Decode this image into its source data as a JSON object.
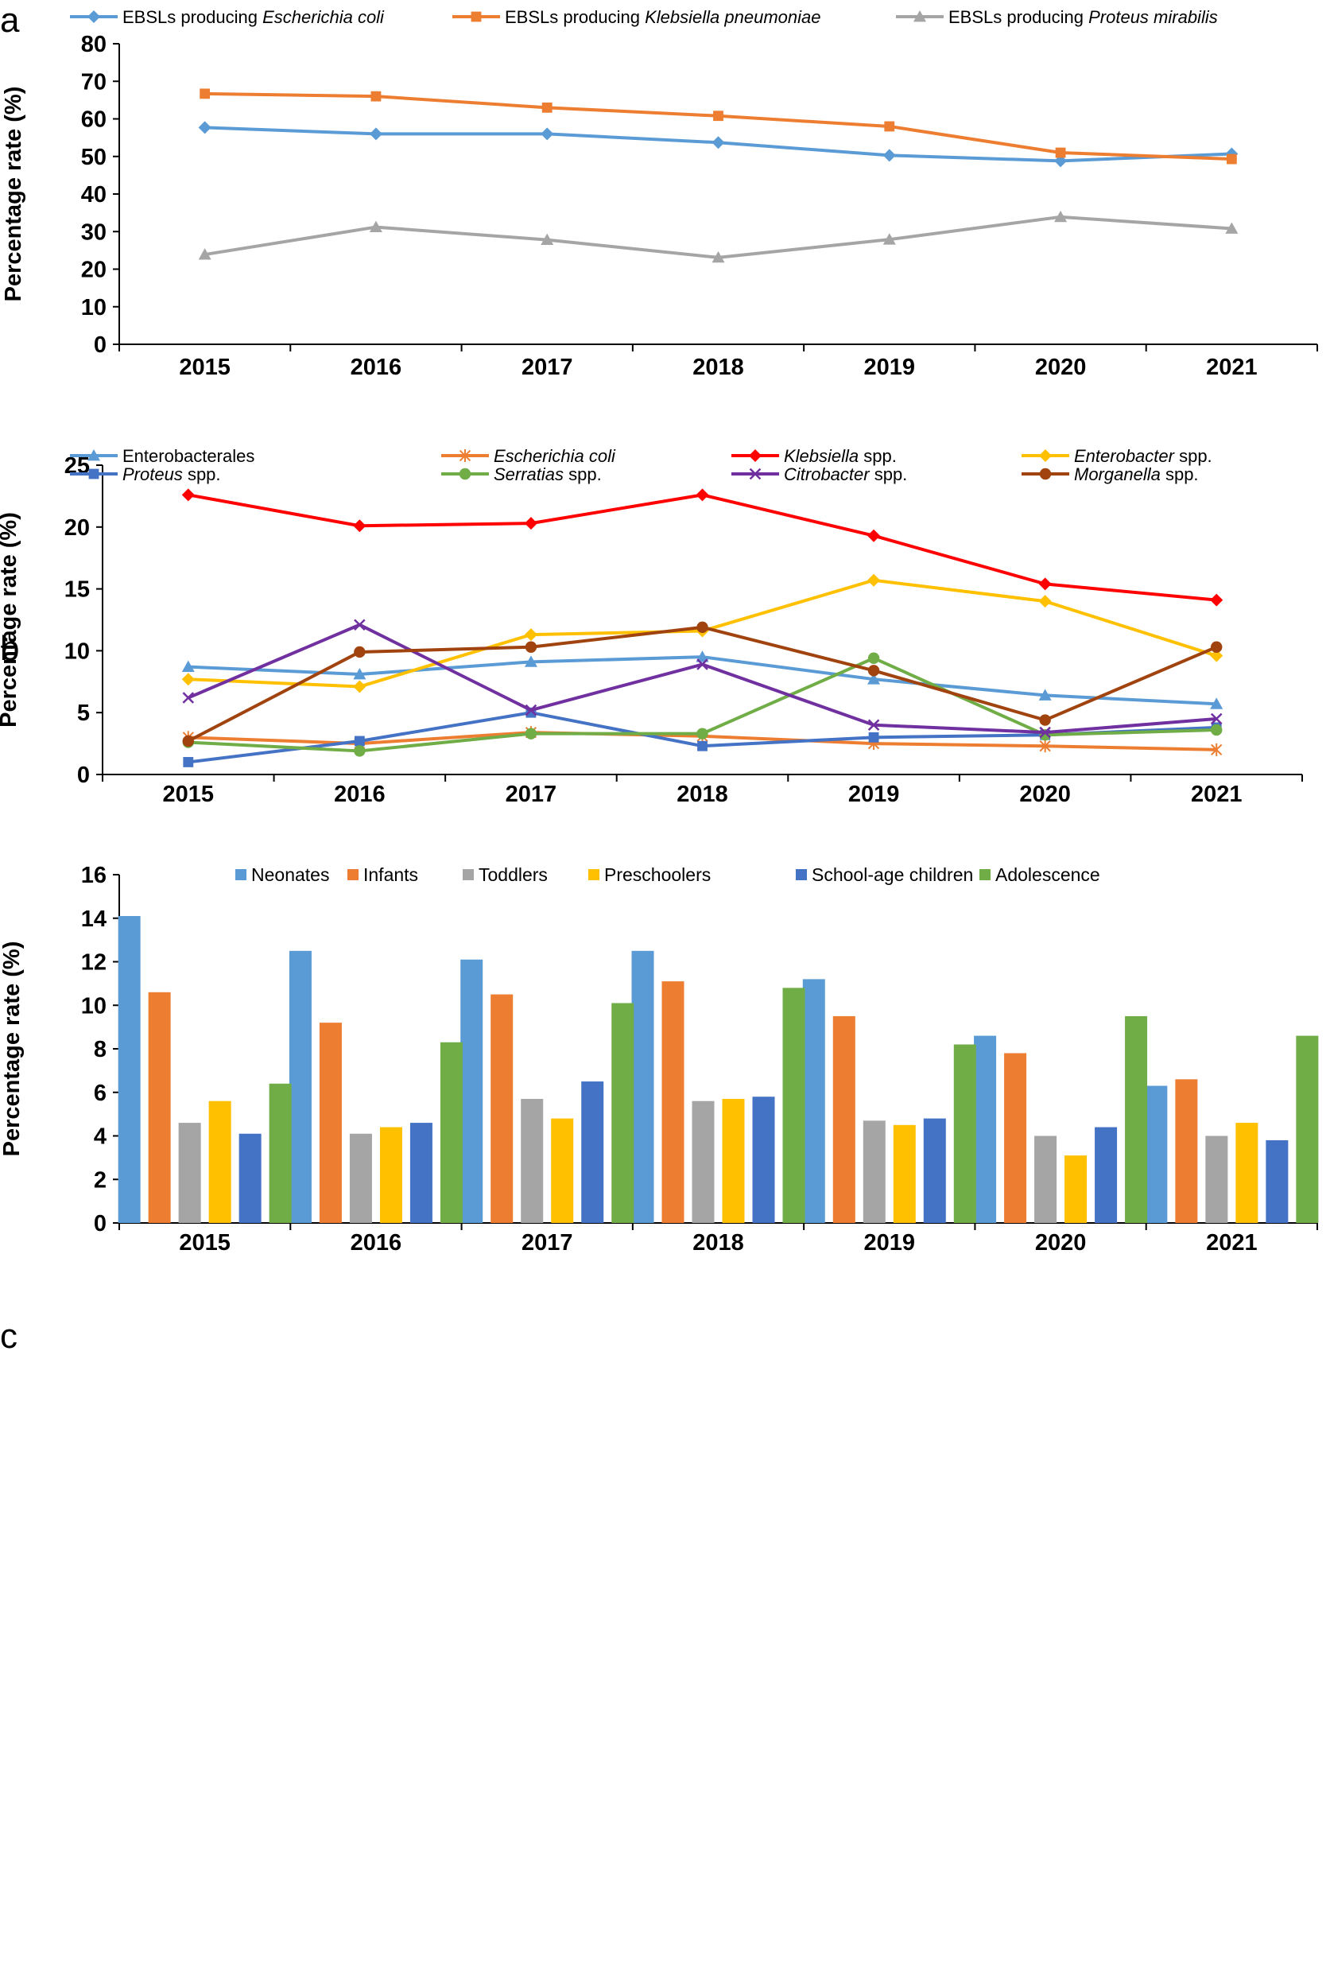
{
  "chart_data": [
    {
      "panel": "a",
      "type": "line",
      "x": [
        "2015",
        "2016",
        "2017",
        "2018",
        "2019",
        "2020",
        "2021"
      ],
      "ylabel": "Percentage rate (%)",
      "xlabel": "",
      "ylim": [
        0,
        80
      ],
      "yticks": [
        0,
        10,
        20,
        30,
        40,
        50,
        60,
        70,
        80
      ],
      "legend_position": "top",
      "series": [
        {
          "prefix": "EBSLs producing ",
          "italic": "Escherichia coli",
          "suffix": "",
          "color": "#5B9BD5",
          "marker": "diamond",
          "values": [
            57.7,
            56.0,
            56.0,
            53.7,
            50.3,
            48.8,
            50.7
          ]
        },
        {
          "prefix": "EBSLs producing ",
          "italic": "Klebsiella pneumoniae",
          "suffix": "",
          "color": "#ED7D31",
          "marker": "square",
          "values": [
            66.7,
            66.0,
            63.0,
            60.8,
            58.0,
            51.0,
            49.3
          ]
        },
        {
          "prefix": "EBSLs producing ",
          "italic": "Proteus mirabilis",
          "suffix": "",
          "color": "#A5A5A5",
          "marker": "triangle",
          "values": [
            23.9,
            31.2,
            27.8,
            23.1,
            27.9,
            33.9,
            30.8
          ]
        }
      ]
    },
    {
      "panel": "b",
      "type": "line",
      "x": [
        "2015",
        "2016",
        "2017",
        "2018",
        "2019",
        "2020",
        "2021"
      ],
      "ylabel": "Percentage rate (%)",
      "xlabel": "",
      "ylim": [
        0,
        25
      ],
      "yticks": [
        0,
        5,
        10,
        15,
        20,
        25
      ],
      "legend_position": "top",
      "series": [
        {
          "prefix": "",
          "italic": "",
          "suffix": "Enterobacterales",
          "color": "#5B9BD5",
          "marker": "triangle",
          "values": [
            8.7,
            8.1,
            9.1,
            9.5,
            7.7,
            6.4,
            5.7
          ]
        },
        {
          "prefix": "",
          "italic": "Escherichia coli",
          "suffix": "",
          "color": "#ED7D31",
          "marker": "star",
          "values": [
            3.0,
            2.5,
            3.4,
            3.1,
            2.5,
            2.3,
            2.0
          ]
        },
        {
          "prefix": "",
          "italic": "Klebsiella",
          "suffix": " spp.",
          "color": "#FF0000",
          "marker": "diamond",
          "values": [
            22.6,
            20.1,
            20.3,
            22.6,
            19.3,
            15.4,
            14.1
          ]
        },
        {
          "prefix": "",
          "italic": "Enterobacter",
          "suffix": " spp.",
          "color": "#FFC000",
          "marker": "diamond",
          "values": [
            7.7,
            7.1,
            11.3,
            11.6,
            15.7,
            14.0,
            9.6
          ]
        },
        {
          "prefix": "",
          "italic": "Proteus",
          "suffix": " spp.",
          "color": "#4472C4",
          "marker": "square",
          "values": [
            1.0,
            2.7,
            5.0,
            2.3,
            3.0,
            3.2,
            3.8
          ]
        },
        {
          "prefix": "",
          "italic": "Serratias",
          "suffix": " spp.",
          "color": "#70AD47",
          "marker": "circle",
          "values": [
            2.6,
            1.9,
            3.3,
            3.3,
            9.4,
            3.2,
            3.6
          ]
        },
        {
          "prefix": "",
          "italic": "Citrobacter",
          "suffix": " spp.",
          "color": "#7030A0",
          "marker": "x",
          "values": [
            6.2,
            12.1,
            5.2,
            8.9,
            4.0,
            3.4,
            4.5
          ]
        },
        {
          "prefix": "",
          "italic": "Morganella",
          "suffix": " spp.",
          "color": "#A0430E",
          "marker": "circle",
          "values": [
            2.7,
            9.9,
            10.3,
            11.9,
            8.4,
            4.4,
            10.3
          ]
        }
      ]
    },
    {
      "panel": "c",
      "type": "bar",
      "categories": [
        "2015",
        "2016",
        "2017",
        "2018",
        "2019",
        "2020",
        "2021"
      ],
      "ylabel": "Percentage rate (%)",
      "xlabel": "",
      "ylim": [
        0,
        16
      ],
      "yticks": [
        0,
        2,
        4,
        6,
        8,
        10,
        12,
        14,
        16
      ],
      "legend_position": "top",
      "series": [
        {
          "name": "Neonates",
          "color": "#5B9BD5",
          "values": [
            14.1,
            12.5,
            12.1,
            12.5,
            11.2,
            8.6,
            6.3
          ]
        },
        {
          "name": "Infants",
          "color": "#ED7D31",
          "values": [
            10.6,
            9.2,
            10.5,
            11.1,
            9.5,
            7.8,
            6.6
          ]
        },
        {
          "name": "Toddlers",
          "color": "#A5A5A5",
          "values": [
            4.6,
            4.1,
            5.7,
            5.6,
            4.7,
            4.0,
            4.0
          ]
        },
        {
          "name": "Preschoolers",
          "color": "#FFC000",
          "values": [
            5.6,
            4.4,
            4.8,
            5.7,
            4.5,
            3.1,
            4.6
          ]
        },
        {
          "name": "School-age children",
          "color": "#4472C4",
          "values": [
            4.1,
            4.6,
            6.5,
            5.8,
            4.8,
            4.4,
            3.8
          ]
        },
        {
          "name": "Adolescence",
          "color": "#70AD47",
          "values": [
            6.4,
            8.3,
            10.1,
            10.8,
            8.2,
            9.5,
            8.6
          ]
        }
      ]
    }
  ]
}
